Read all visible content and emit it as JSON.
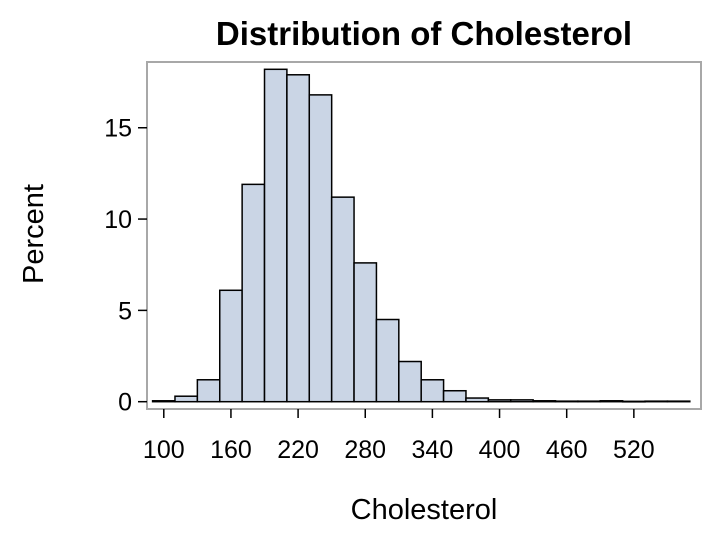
{
  "chart_data": {
    "type": "bar",
    "title": "Distribution of Cholesterol",
    "xlabel": "Cholesterol",
    "ylabel": "Percent",
    "bin_width": 20,
    "bins": [
      {
        "start": 90,
        "value": 0.05
      },
      {
        "start": 110,
        "value": 0.3
      },
      {
        "start": 130,
        "value": 1.2
      },
      {
        "start": 150,
        "value": 6.1
      },
      {
        "start": 170,
        "value": 11.9
      },
      {
        "start": 190,
        "value": 18.2
      },
      {
        "start": 210,
        "value": 17.9
      },
      {
        "start": 230,
        "value": 16.8
      },
      {
        "start": 250,
        "value": 11.2
      },
      {
        "start": 270,
        "value": 7.6
      },
      {
        "start": 290,
        "value": 4.5
      },
      {
        "start": 310,
        "value": 2.2
      },
      {
        "start": 330,
        "value": 1.2
      },
      {
        "start": 350,
        "value": 0.6
      },
      {
        "start": 370,
        "value": 0.2
      },
      {
        "start": 390,
        "value": 0.1
      },
      {
        "start": 410,
        "value": 0.1
      },
      {
        "start": 430,
        "value": 0.05
      },
      {
        "start": 450,
        "value": 0.03
      },
      {
        "start": 470,
        "value": 0.03
      },
      {
        "start": 490,
        "value": 0.05
      },
      {
        "start": 510,
        "value": 0.02
      },
      {
        "start": 530,
        "value": 0.03
      },
      {
        "start": 550,
        "value": 0.03
      }
    ],
    "xlim": [
      85,
      580
    ],
    "ylim": [
      -0.4,
      18.6
    ],
    "x_ticks": [
      100,
      160,
      220,
      280,
      340,
      400,
      460,
      520
    ],
    "y_ticks": [
      0,
      5,
      10,
      15
    ],
    "bar_color": "#cad5e5",
    "grid": false,
    "legend": "none"
  }
}
